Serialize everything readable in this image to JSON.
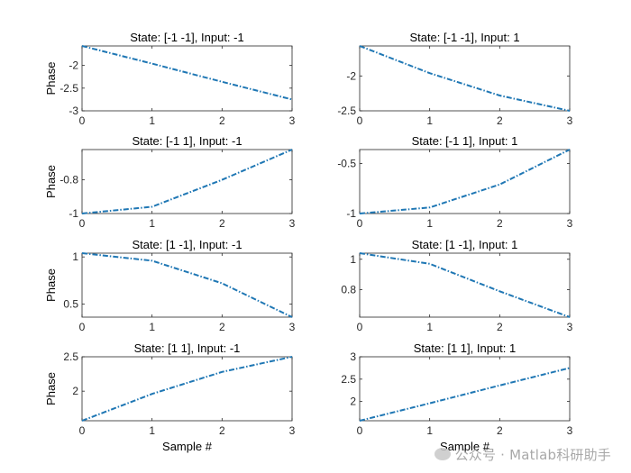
{
  "figure": {
    "xlabel": "Sample #",
    "ylabel": "Phase",
    "line_color": "#1f77b4"
  },
  "watermark": {
    "text": "公众号 · Matlab科研助手"
  },
  "chart_data": [
    {
      "type": "line",
      "title": "State: [-1 -1], Input: -1",
      "ylabel": "Phase",
      "xlabel": "",
      "x": [
        0,
        1,
        2,
        3
      ],
      "y": [
        -1.57,
        -1.96,
        -2.36,
        -2.75
      ],
      "xlim": [
        0,
        3
      ],
      "ylim": [
        -3,
        -1.57
      ],
      "xticks": [
        0,
        1,
        2,
        3
      ],
      "yticks": [
        -3,
        -2.5,
        -2
      ],
      "ytick_labels": [
        "-3",
        "-2.5",
        "-2"
      ]
    },
    {
      "type": "line",
      "title": "State: [-1 -1], Input: 1",
      "ylabel": "",
      "xlabel": "",
      "x": [
        0,
        1,
        2,
        3
      ],
      "y": [
        -1.57,
        -1.96,
        -2.28,
        -2.5
      ],
      "xlim": [
        0,
        3
      ],
      "ylim": [
        -2.5,
        -1.57
      ],
      "xticks": [
        0,
        1,
        2,
        3
      ],
      "yticks": [
        -2.5,
        -2
      ],
      "ytick_labels": [
        "-2.5",
        "-2"
      ]
    },
    {
      "type": "line",
      "title": "State: [-1  1], Input: -1",
      "ylabel": "Phase",
      "xlabel": "",
      "x": [
        0,
        1,
        2,
        3
      ],
      "y": [
        -1.0,
        -0.96,
        -0.8,
        -0.62
      ],
      "xlim": [
        0,
        3
      ],
      "ylim": [
        -1.0,
        -0.62
      ],
      "xticks": [
        0,
        1,
        2,
        3
      ],
      "yticks": [
        -1,
        -0.8
      ],
      "ytick_labels": [
        "-1",
        "-0.8"
      ]
    },
    {
      "type": "line",
      "title": "State: [-1  1], Input: 1",
      "ylabel": "",
      "xlabel": "",
      "x": [
        0,
        1,
        2,
        3
      ],
      "y": [
        -1.0,
        -0.94,
        -0.71,
        -0.36
      ],
      "xlim": [
        0,
        3
      ],
      "ylim": [
        -1.0,
        -0.36
      ],
      "xticks": [
        0,
        1,
        2,
        3
      ],
      "yticks": [
        -1,
        -0.5
      ],
      "ytick_labels": [
        "-1",
        "-0.5"
      ]
    },
    {
      "type": "line",
      "title": "State: [1 -1], Input: -1",
      "ylabel": "Phase",
      "xlabel": "",
      "x": [
        0,
        1,
        2,
        3
      ],
      "y": [
        1.04,
        0.96,
        0.72,
        0.36
      ],
      "xlim": [
        0,
        3
      ],
      "ylim": [
        0.36,
        1.04
      ],
      "xticks": [
        0,
        1,
        2,
        3
      ],
      "yticks": [
        0.5,
        1
      ],
      "ytick_labels": [
        "0.5",
        "1"
      ]
    },
    {
      "type": "line",
      "title": "State: [1 -1], Input: 1",
      "ylabel": "",
      "xlabel": "",
      "x": [
        0,
        1,
        2,
        3
      ],
      "y": [
        1.04,
        0.97,
        0.79,
        0.62
      ],
      "xlim": [
        0,
        3
      ],
      "ylim": [
        0.62,
        1.04
      ],
      "xticks": [
        0,
        1,
        2,
        3
      ],
      "yticks": [
        0.8,
        1
      ],
      "ytick_labels": [
        "0.8",
        "1"
      ]
    },
    {
      "type": "line",
      "title": "State: [1  1], Input: -1",
      "ylabel": "Phase",
      "xlabel": "Sample #",
      "x": [
        0,
        1,
        2,
        3
      ],
      "y": [
        1.57,
        1.96,
        2.28,
        2.5
      ],
      "xlim": [
        0,
        3
      ],
      "ylim": [
        1.57,
        2.5
      ],
      "xticks": [
        0,
        1,
        2,
        3
      ],
      "yticks": [
        2,
        2.5
      ],
      "ytick_labels": [
        "2",
        "2.5"
      ]
    },
    {
      "type": "line",
      "title": "State: [1  1], Input: 1",
      "ylabel": "",
      "xlabel": "Sample #",
      "x": [
        0,
        1,
        2,
        3
      ],
      "y": [
        1.57,
        1.96,
        2.36,
        2.75
      ],
      "xlim": [
        0,
        3
      ],
      "ylim": [
        1.57,
        3
      ],
      "xticks": [
        0,
        1,
        2,
        3
      ],
      "yticks": [
        2,
        2.5,
        3
      ],
      "ytick_labels": [
        "2",
        "2.5",
        "3"
      ]
    }
  ]
}
